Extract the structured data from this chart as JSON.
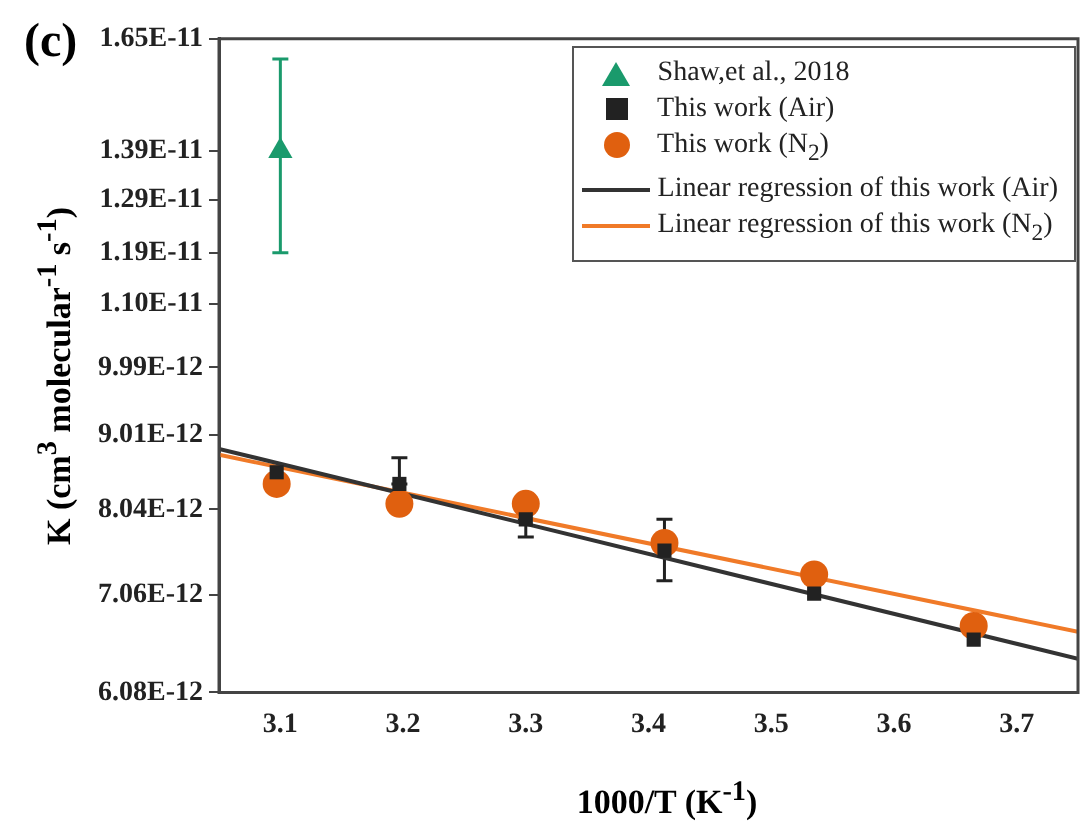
{
  "chart_data": {
    "type": "scatter",
    "title": "(c)",
    "xlabel": "1000/T (K$^{-1}$)",
    "ylabel": "K (cm$^{3}$ molecular$^{-1}$ s$^{-1}$)",
    "log": "y",
    "grid": false,
    "legend": "top right",
    "xlim": [
      3.05,
      3.75
    ],
    "xticks": [
      3.1,
      3.2,
      3.3,
      3.4,
      3.5,
      3.6,
      3.7
    ],
    "ylim": [
      6.08e-12,
      1.65e-11
    ],
    "yticks": [
      {
        "value": 6.08e-12,
        "label": "6.08E-12"
      },
      {
        "value": 7.06e-12,
        "label": "7.06E-12"
      },
      {
        "value": 8.04e-12,
        "label": "8.04E-12"
      },
      {
        "value": 9.01e-12,
        "label": "9.01E-12"
      },
      {
        "value": 9.99e-12,
        "label": "9.99E-12"
      },
      {
        "value": 1.1e-11,
        "label": "1.10E-11"
      },
      {
        "value": 1.19e-11,
        "label": "1.19E-11"
      },
      {
        "value": 1.29e-11,
        "label": "1.29E-11"
      },
      {
        "value": 1.39e-11,
        "label": "1.39E-11"
      },
      {
        "value": 1.65e-11,
        "label": "1.65E-11"
      }
    ],
    "series": [
      {
        "name": "Shaw,et al., 2018",
        "type": "scatter",
        "marker": "triangle",
        "color": "#1a9a6c",
        "x": [
          3.1
        ],
        "values": [
          1.39e-11
        ],
        "errors": [
          [
            1.19e-11,
            1.6e-11
          ]
        ]
      },
      {
        "name": "This work (Air)",
        "type": "scatter",
        "marker": "square",
        "color": "#222222",
        "x": [
          3.097,
          3.197,
          3.3,
          3.413,
          3.535,
          3.665
        ],
        "values": [
          8.51e-12,
          8.36e-12,
          7.92e-12,
          7.55e-12,
          7.07e-12,
          6.59e-12
        ],
        "errors": [
          null,
          [
            8.36e-12,
            8.7e-12
          ],
          [
            7.71e-12,
            7.92e-12
          ],
          [
            7.21e-12,
            7.92e-12
          ],
          null,
          null
        ]
      },
      {
        "name": "This work (N$_{2}$)",
        "type": "scatter",
        "marker": "circle",
        "color": "#e0600f",
        "x": [
          3.097,
          3.197,
          3.3,
          3.413,
          3.535,
          3.665
        ],
        "values": [
          8.36e-12,
          8.11e-12,
          8.11e-12,
          7.64e-12,
          7.28e-12,
          6.73e-12
        ]
      },
      {
        "name": "Linear regression of this work (Air)",
        "type": "line",
        "marker": "none",
        "color": "#333333",
        "x": [
          3.05,
          3.75
        ],
        "values": [
          8.82e-12,
          6.4e-12
        ]
      },
      {
        "name": "Linear regression of this work (N$_{2}$)",
        "type": "line",
        "marker": "none",
        "color": "#f07a28",
        "x": [
          3.05,
          3.75
        ],
        "values": [
          8.74e-12,
          6.67e-12
        ]
      }
    ]
  }
}
